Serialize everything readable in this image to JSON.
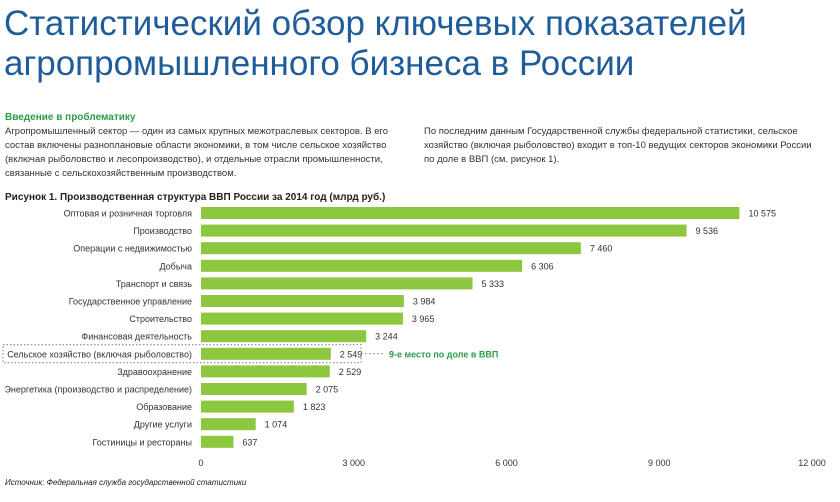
{
  "header": {
    "title_line1": "Статистический обзор ключевых показателей",
    "title_line2": "агропромышленного бизнеса в России"
  },
  "intro": {
    "heading": "Введение в проблематику",
    "left": "Агропромышленный сектор — один из самых крупных межотраслевых секторов. В его состав включены разноплановые области экономики, в том числе сельское хозяйство (включая рыболовство и лесопроизводство), и отдельные отрасли промышленности, связанные с сельскохозяйственным производством.",
    "right": "По последним данным Государственной службы федеральной статистики, сельское хозяйство (включая рыболовство) входит в топ-10 ведущих секторов экономики России по доле в ВВП (см. рисунок 1)."
  },
  "source": "Источник: Федеральная служба государственной статистики",
  "colors": {
    "bar": "#8dc63f",
    "title": "#1f5c9a",
    "accent": "#2e9b48"
  },
  "chart_data": {
    "type": "bar",
    "orientation": "horizontal",
    "title": "Рисунок 1. Производственная структура ВВП России за 2014 год (млрд руб.)",
    "categories": [
      "Оптовая и розничная торговля",
      "Производство",
      "Операции с недвижимостью",
      "Добыча",
      "Транспорт и связь",
      "Государственное управление",
      "Строительство",
      "Финансовая деятельность",
      "Сельское хозяйство (включая рыболовство)",
      "Здравоохранение",
      "Энергетика (производство и распределение)",
      "Образование",
      "Другие услуги",
      "Гостиницы и рестораны"
    ],
    "values": [
      10575,
      9536,
      7460,
      6306,
      5333,
      3984,
      3965,
      3244,
      2549,
      2529,
      2075,
      1823,
      1074,
      637
    ],
    "value_labels": [
      "10 575",
      "9 536",
      "7 460",
      "6 306",
      "5 333",
      "3 984",
      "3 965",
      "3 244",
      "2 549",
      "2 529",
      "2 075",
      "1 823",
      "1 074",
      "637"
    ],
    "xlim": [
      0,
      12000
    ],
    "xticks": [
      0,
      3000,
      6000,
      9000,
      12000
    ],
    "xtick_labels": [
      "0",
      "3 000",
      "6 000",
      "9 000",
      "12 000"
    ],
    "highlight_index": 8,
    "annotation": "9-е место по доле в ВВП",
    "grid": false
  }
}
